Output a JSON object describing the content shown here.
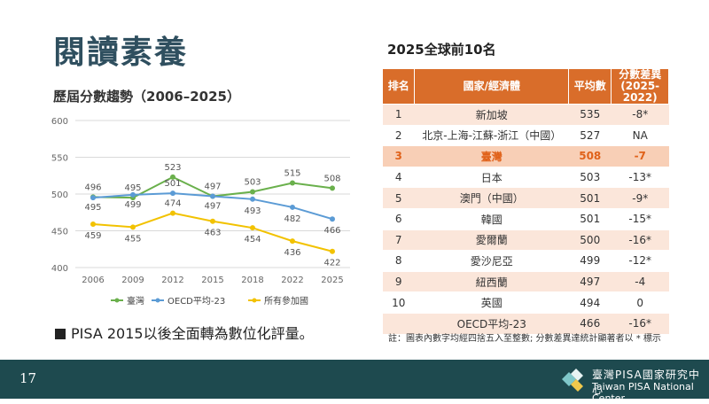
{
  "page": {
    "title": "閱讀素養",
    "chart_heading": "歷屆分數趨勢（2006–2025）",
    "note": "PISA 2015以後全面轉為數位化評量。",
    "page_number": "17"
  },
  "chart_data": {
    "type": "line",
    "title": "歷屆分數趨勢（2006–2025）",
    "x": [
      "2006",
      "2009",
      "2012",
      "2015",
      "2018",
      "2022",
      "2025"
    ],
    "ylim": [
      400,
      600
    ],
    "yticks": [
      400,
      450,
      500,
      550,
      600
    ],
    "grid": true,
    "legend_position": "bottom",
    "series": [
      {
        "name": "臺灣",
        "color": "#6ab04c",
        "values": [
          496,
          495,
          523,
          497,
          503,
          515,
          508
        ]
      },
      {
        "name": "OECD平均-23",
        "color": "#5b9bd5",
        "values": [
          495,
          499,
          501,
          497,
          493,
          482,
          466
        ]
      },
      {
        "name": "所有參加國",
        "color": "#f2c200",
        "values": [
          459,
          455,
          474,
          463,
          454,
          436,
          422
        ]
      }
    ]
  },
  "table": {
    "heading": "2025全球前10名",
    "headers": [
      "排名",
      "國家/經濟體",
      "平均數",
      "分數差異",
      "(2025-2022)"
    ],
    "rows": [
      {
        "rank": "1",
        "country": "新加坡",
        "mean": "535",
        "diff": "-8*"
      },
      {
        "rank": "2",
        "country": "北京-上海-江蘇-浙江（中國）",
        "mean": "527",
        "diff": "NA"
      },
      {
        "rank": "3",
        "country": "臺灣",
        "mean": "508",
        "diff": "-7"
      },
      {
        "rank": "4",
        "country": "日本",
        "mean": "503",
        "diff": "-13*"
      },
      {
        "rank": "5",
        "country": "澳門（中國）",
        "mean": "501",
        "diff": "-9*"
      },
      {
        "rank": "6",
        "country": "韓國",
        "mean": "501",
        "diff": "-15*"
      },
      {
        "rank": "7",
        "country": "愛爾蘭",
        "mean": "500",
        "diff": "-16*"
      },
      {
        "rank": "8",
        "country": "愛沙尼亞",
        "mean": "499",
        "diff": "-12*"
      },
      {
        "rank": "9",
        "country": "紐西蘭",
        "mean": "497",
        "diff": "-4"
      },
      {
        "rank": "10",
        "country": "英國",
        "mean": "494",
        "diff": "0"
      },
      {
        "rank": "",
        "country": "OECD平均-23",
        "mean": "466",
        "diff": "-16*"
      }
    ],
    "note": "註：圖表內數字均經四捨五入至整數; 分數差異達統計顯著者以 * 標示"
  },
  "footer": {
    "org_zh": "臺灣PISA國家研究中心",
    "org_en": "Taiwan PISA National Center",
    "bg_color": "#1e4a4f"
  }
}
